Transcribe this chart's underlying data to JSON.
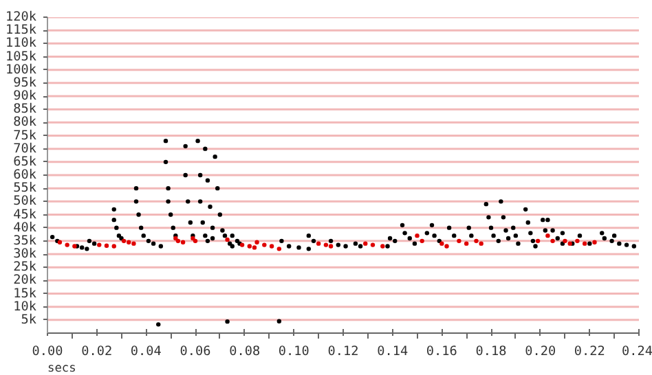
{
  "chart_data": {
    "type": "scatter",
    "xlabel": "secs",
    "marker": "circle",
    "grid": "y",
    "xlim": [
      0,
      0.24
    ],
    "ylim": [
      0,
      120000
    ],
    "xticks": [
      {
        "value": 0,
        "label": "0.00"
      },
      {
        "value": 0.02,
        "label": "0.02"
      },
      {
        "value": 0.04,
        "label": "0.04"
      },
      {
        "value": 0.06,
        "label": "0.06"
      },
      {
        "value": 0.08,
        "label": "0.08"
      },
      {
        "value": 0.1,
        "label": "0.10"
      },
      {
        "value": 0.12,
        "label": "0.12"
      },
      {
        "value": 0.14,
        "label": "0.14"
      },
      {
        "value": 0.16,
        "label": "0.16"
      },
      {
        "value": 0.18,
        "label": "0.18"
      },
      {
        "value": 0.2,
        "label": "0.20"
      },
      {
        "value": 0.22,
        "label": "0.22"
      },
      {
        "value": 0.24,
        "label": "0.24"
      }
    ],
    "yticks": [
      {
        "value": 5000,
        "label": "5k"
      },
      {
        "value": 10000,
        "label": "10k"
      },
      {
        "value": 15000,
        "label": "15k"
      },
      {
        "value": 20000,
        "label": "20k"
      },
      {
        "value": 25000,
        "label": "25k"
      },
      {
        "value": 30000,
        "label": "30k"
      },
      {
        "value": 35000,
        "label": "35k"
      },
      {
        "value": 40000,
        "label": "40k"
      },
      {
        "value": 45000,
        "label": "45k"
      },
      {
        "value": 50000,
        "label": "50k"
      },
      {
        "value": 55000,
        "label": "55k"
      },
      {
        "value": 60000,
        "label": "60k"
      },
      {
        "value": 65000,
        "label": "65k"
      },
      {
        "value": 70000,
        "label": "70k"
      },
      {
        "value": 75000,
        "label": "75k"
      },
      {
        "value": 80000,
        "label": "80k"
      },
      {
        "value": 85000,
        "label": "85k"
      },
      {
        "value": 90000,
        "label": "90k"
      },
      {
        "value": 95000,
        "label": "95k"
      },
      {
        "value": 100000,
        "label": "100k"
      },
      {
        "value": 105000,
        "label": "105k"
      },
      {
        "value": 110000,
        "label": "110k"
      },
      {
        "value": 115000,
        "label": "115k"
      },
      {
        "value": 120000,
        "label": "120k"
      }
    ],
    "series": [
      {
        "color": "#000000",
        "x": [
          0.002,
          0.004,
          0.012,
          0.014,
          0.016,
          0.017,
          0.019,
          0.027,
          0.027,
          0.028,
          0.029,
          0.03,
          0.036,
          0.036,
          0.037,
          0.038,
          0.039,
          0.041,
          0.043,
          0.046,
          0.048,
          0.048,
          0.049,
          0.049,
          0.05,
          0.051,
          0.052,
          0.056,
          0.056,
          0.057,
          0.058,
          0.059,
          0.061,
          0.062,
          0.062,
          0.063,
          0.064,
          0.065,
          0.064,
          0.065,
          0.066,
          0.067,
          0.067,
          0.068,
          0.069,
          0.07,
          0.071,
          0.072,
          0.074,
          0.075,
          0.075,
          0.077,
          0.078,
          0.095,
          0.098,
          0.102,
          0.106,
          0.106,
          0.108,
          0.115,
          0.118,
          0.121,
          0.125,
          0.127,
          0.138,
          0.139,
          0.141,
          0.144,
          0.145,
          0.147,
          0.149,
          0.154,
          0.156,
          0.157,
          0.159,
          0.163,
          0.165,
          0.171,
          0.172,
          0.178,
          0.179,
          0.18,
          0.181,
          0.183,
          0.184,
          0.185,
          0.186,
          0.187,
          0.189,
          0.19,
          0.191,
          0.194,
          0.195,
          0.196,
          0.197,
          0.198,
          0.201,
          0.202,
          0.203,
          0.205,
          0.207,
          0.209,
          0.209,
          0.213,
          0.216,
          0.22,
          0.225,
          0.226,
          0.229,
          0.23,
          0.232,
          0.235,
          0.238,
          0.045,
          0.073,
          0.094
        ],
        "values": [
          36500,
          35000,
          33000,
          32500,
          32000,
          35000,
          34000,
          47000,
          43000,
          40000,
          37000,
          36000,
          55000,
          50000,
          45000,
          40000,
          37000,
          35000,
          34000,
          33000,
          73000,
          65000,
          55000,
          50000,
          45000,
          40000,
          37000,
          71000,
          60000,
          50000,
          42000,
          37000,
          73000,
          60000,
          50000,
          42000,
          37000,
          35000,
          70000,
          58000,
          48000,
          40000,
          36000,
          67000,
          55000,
          45000,
          39000,
          37000,
          34000,
          33000,
          37000,
          35000,
          34000,
          35000,
          33000,
          32500,
          32000,
          37000,
          35000,
          35000,
          33500,
          33000,
          34000,
          33000,
          33000,
          36000,
          35000,
          41000,
          38000,
          36000,
          34000,
          38000,
          41000,
          37000,
          35000,
          40000,
          37000,
          40000,
          37000,
          49000,
          44000,
          40000,
          37000,
          35000,
          50000,
          44000,
          39000,
          36000,
          40000,
          37000,
          34000,
          47000,
          42000,
          38000,
          35000,
          33000,
          43000,
          39000,
          43000,
          39000,
          36000,
          34000,
          38000,
          34000,
          37000,
          34000,
          38000,
          36000,
          35000,
          37000,
          34000,
          33500,
          33000,
          3300,
          4400,
          4500
        ]
      },
      {
        "color": "#e00000",
        "x": [
          0.005,
          0.008,
          0.011,
          0.021,
          0.024,
          0.027,
          0.031,
          0.033,
          0.035,
          0.052,
          0.053,
          0.055,
          0.059,
          0.06,
          0.073,
          0.079,
          0.082,
          0.084,
          0.085,
          0.088,
          0.091,
          0.094,
          0.11,
          0.113,
          0.115,
          0.129,
          0.132,
          0.136,
          0.15,
          0.152,
          0.16,
          0.162,
          0.167,
          0.17,
          0.174,
          0.176,
          0.199,
          0.203,
          0.205,
          0.21,
          0.212,
          0.215,
          0.218,
          0.222
        ],
        "values": [
          34500,
          33500,
          33000,
          33500,
          33200,
          33000,
          35000,
          34500,
          34000,
          36000,
          35000,
          34500,
          36000,
          35000,
          35500,
          33500,
          33000,
          32500,
          34500,
          33500,
          33000,
          32000,
          34000,
          33500,
          33000,
          34000,
          33500,
          33000,
          37000,
          35000,
          34000,
          33000,
          35000,
          34000,
          35000,
          34000,
          35000,
          37000,
          35000,
          35000,
          34000,
          35000,
          34000,
          34500
        ]
      }
    ]
  }
}
